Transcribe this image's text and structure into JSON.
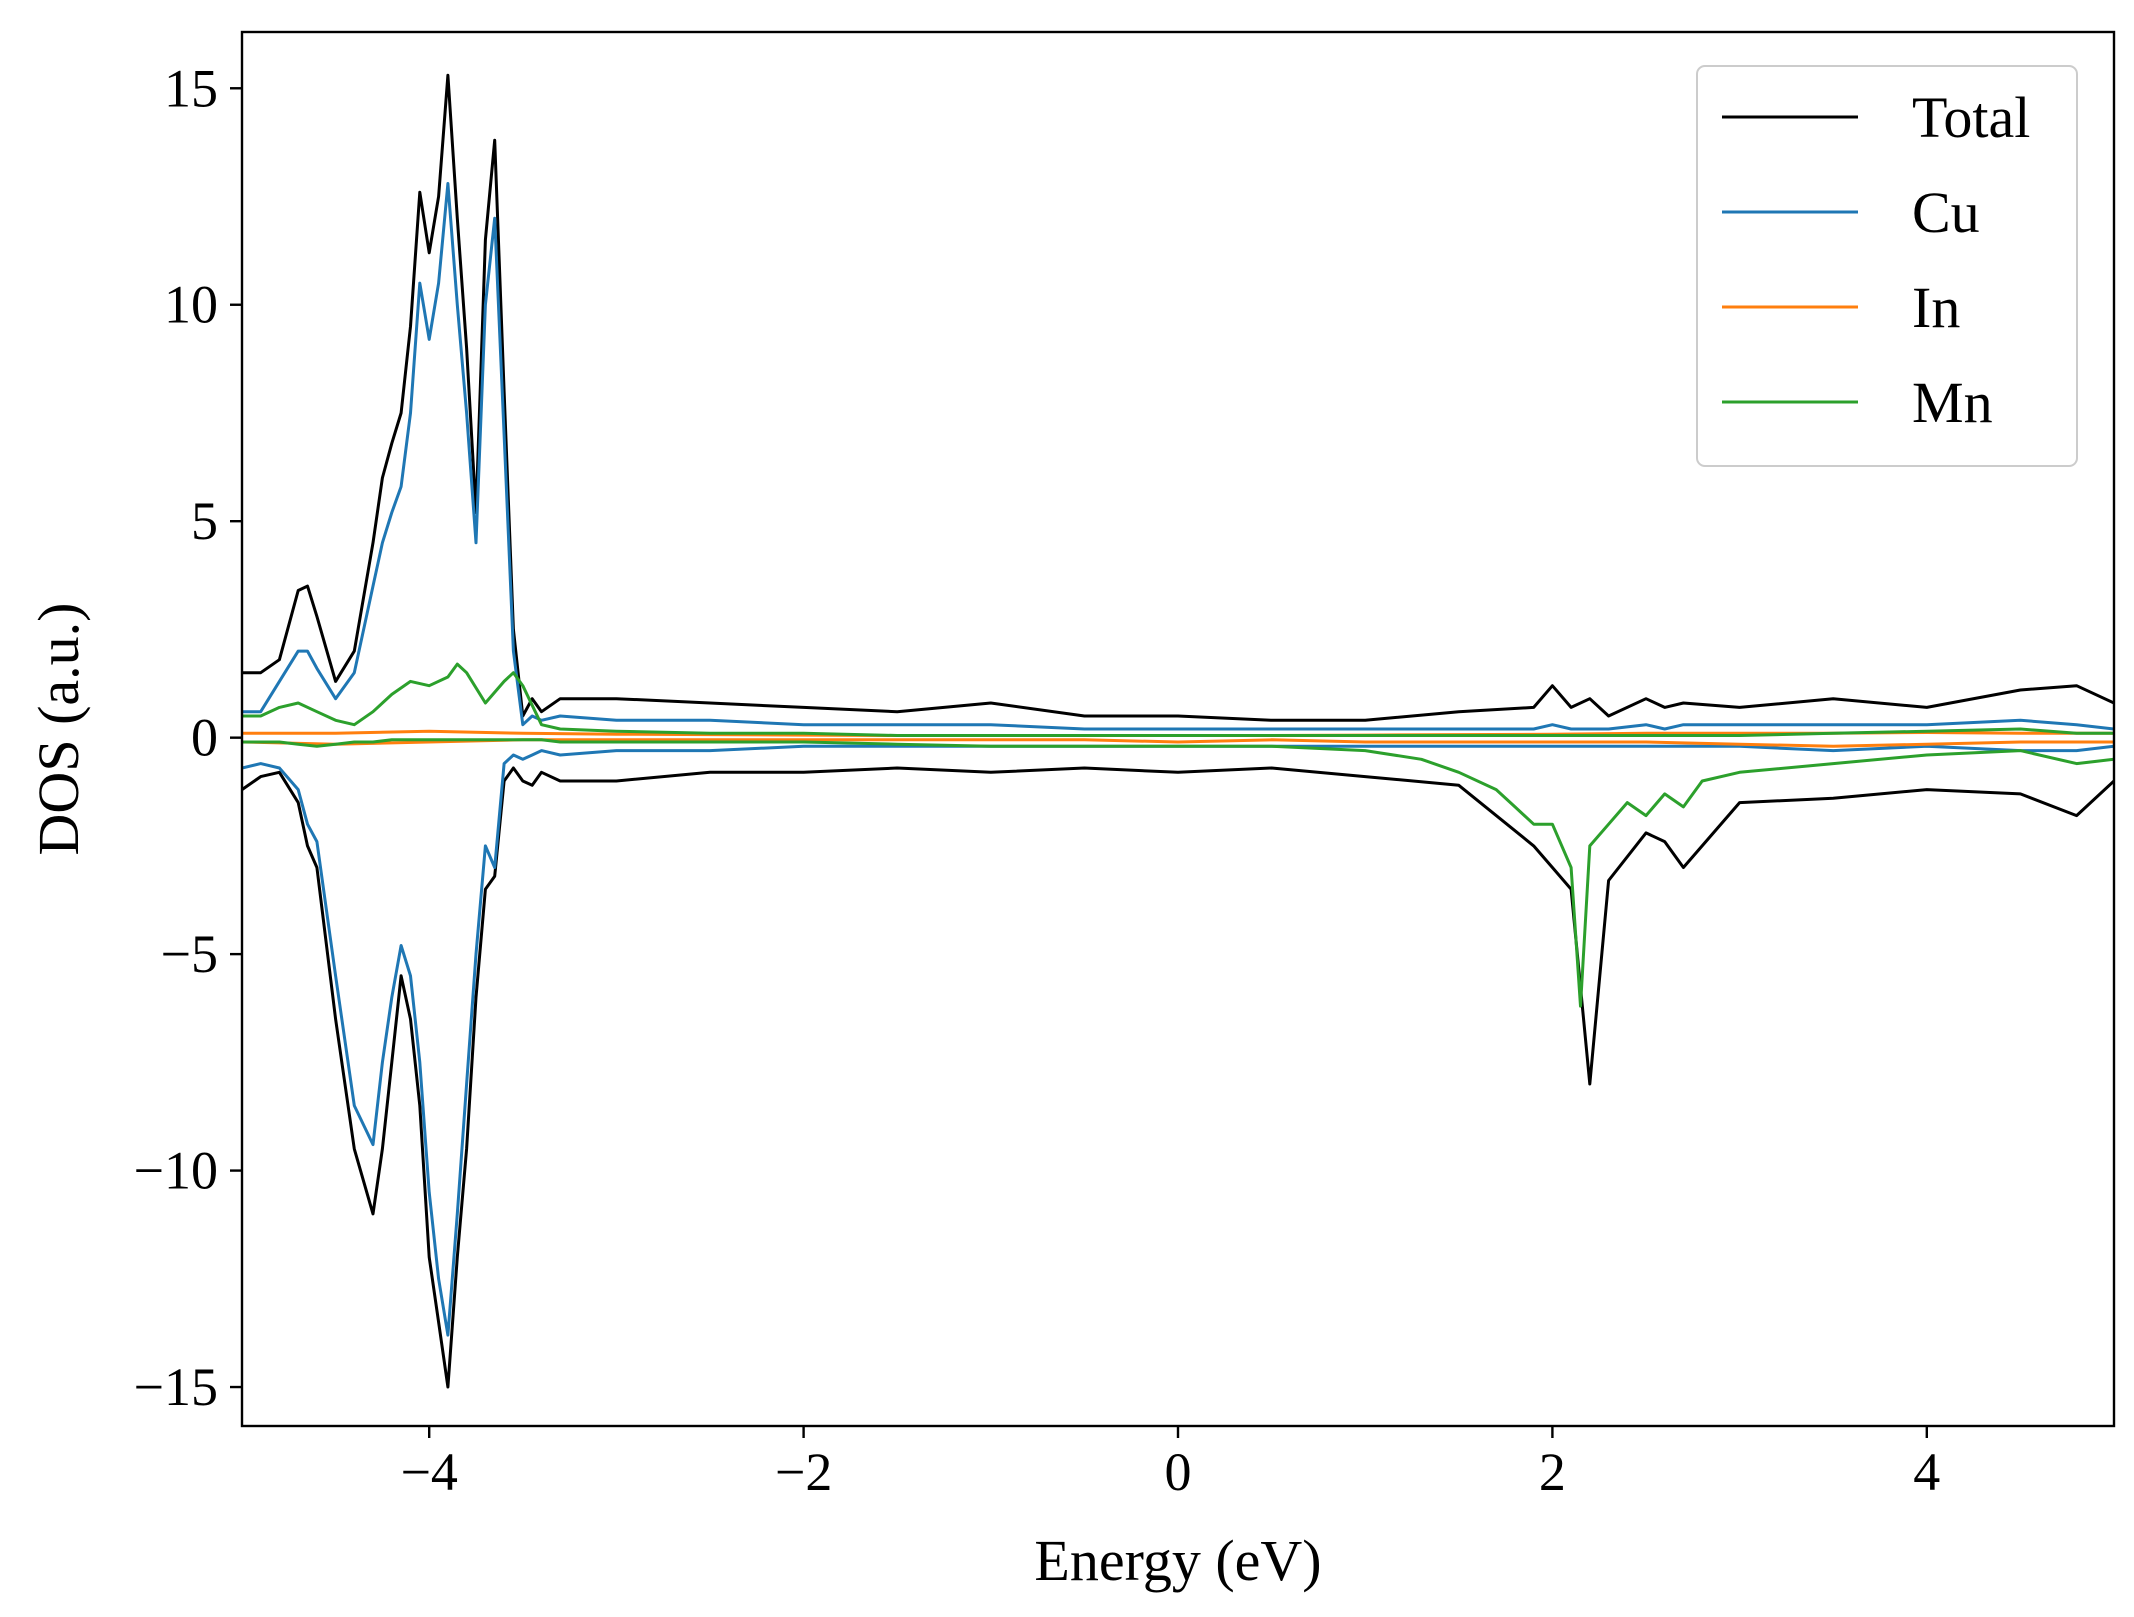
{
  "chart_data": {
    "type": "line",
    "title": "",
    "xlabel": "Energy (eV)",
    "ylabel": "DOS (a.u.)",
    "xlim": [
      -5,
      5
    ],
    "ylim": [
      -15.9,
      16.3
    ],
    "xticks": [
      {
        "value": -4,
        "label": "−4"
      },
      {
        "value": -2,
        "label": "−2"
      },
      {
        "value": 0,
        "label": "0"
      },
      {
        "value": 2,
        "label": "2"
      },
      {
        "value": 4,
        "label": "4"
      }
    ],
    "yticks": [
      {
        "value": 15,
        "label": "15"
      },
      {
        "value": 10,
        "label": "10"
      },
      {
        "value": 5,
        "label": "5"
      },
      {
        "value": 0,
        "label": "0"
      },
      {
        "value": -5,
        "label": "−5"
      },
      {
        "value": -10,
        "label": "−10"
      },
      {
        "value": -15,
        "label": "−15"
      }
    ],
    "grid": false,
    "legend_position": "top-right",
    "series": [
      {
        "name": "Total",
        "color": "#000000",
        "x": [
          -5.0,
          -4.9,
          -4.8,
          -4.7,
          -4.65,
          -4.6,
          -4.5,
          -4.4,
          -4.3,
          -4.25,
          -4.2,
          -4.15,
          -4.1,
          -4.05,
          -4.0,
          -3.95,
          -3.9,
          -3.85,
          -3.8,
          -3.75,
          -3.7,
          -3.65,
          -3.6,
          -3.55,
          -3.5,
          -3.45,
          -3.4,
          -3.3,
          -3.0,
          -2.5,
          -2.0,
          -1.5,
          -1.0,
          -0.5,
          0.0,
          0.5,
          1.0,
          1.5,
          1.9,
          2.0,
          2.1,
          2.2,
          2.3,
          2.5,
          2.6,
          2.7,
          3.0,
          3.5,
          4.0,
          4.5,
          4.8,
          5.0
        ],
        "up": [
          1.5,
          1.5,
          1.8,
          3.4,
          3.5,
          2.8,
          1.3,
          2.0,
          4.5,
          6.0,
          6.8,
          7.5,
          9.5,
          12.6,
          11.2,
          12.5,
          15.3,
          12.0,
          9.0,
          5.2,
          11.5,
          13.8,
          8.0,
          2.5,
          0.5,
          0.9,
          0.6,
          0.9,
          0.9,
          0.8,
          0.7,
          0.6,
          0.8,
          0.5,
          0.5,
          0.4,
          0.4,
          0.6,
          0.7,
          1.2,
          0.7,
          0.9,
          0.5,
          0.9,
          0.7,
          0.8,
          0.7,
          0.9,
          0.7,
          1.1,
          1.2,
          0.8
        ],
        "down": [
          -1.2,
          -0.9,
          -0.8,
          -1.5,
          -2.5,
          -3.0,
          -6.5,
          -9.5,
          -11.0,
          -9.5,
          -7.5,
          -5.5,
          -6.5,
          -8.5,
          -12.0,
          -13.5,
          -15.0,
          -12.0,
          -9.5,
          -6.0,
          -3.5,
          -3.2,
          -1.0,
          -0.7,
          -1.0,
          -1.1,
          -0.8,
          -1.0,
          -1.0,
          -0.8,
          -0.8,
          -0.7,
          -0.8,
          -0.7,
          -0.8,
          -0.7,
          -0.9,
          -1.1,
          -2.5,
          -3.0,
          -3.5,
          -8.0,
          -3.3,
          -2.2,
          -2.4,
          -3.0,
          -1.5,
          -1.4,
          -1.2,
          -1.3,
          -1.8,
          -1.0
        ]
      },
      {
        "name": "Cu",
        "color": "#1f77b4",
        "x": [
          -5.0,
          -4.9,
          -4.8,
          -4.7,
          -4.65,
          -4.6,
          -4.5,
          -4.4,
          -4.3,
          -4.25,
          -4.2,
          -4.15,
          -4.1,
          -4.05,
          -4.0,
          -3.95,
          -3.9,
          -3.85,
          -3.8,
          -3.75,
          -3.7,
          -3.65,
          -3.6,
          -3.55,
          -3.5,
          -3.45,
          -3.4,
          -3.3,
          -3.0,
          -2.5,
          -2.0,
          -1.5,
          -1.0,
          -0.5,
          0.0,
          0.5,
          1.0,
          1.5,
          1.9,
          2.0,
          2.1,
          2.2,
          2.3,
          2.5,
          2.6,
          2.7,
          3.0,
          3.5,
          4.0,
          4.5,
          4.8,
          5.0
        ],
        "up": [
          0.6,
          0.6,
          1.3,
          2.0,
          2.0,
          1.6,
          0.9,
          1.5,
          3.5,
          4.5,
          5.2,
          5.8,
          7.5,
          10.5,
          9.2,
          10.5,
          12.8,
          10.0,
          7.5,
          4.5,
          10.0,
          12.0,
          7.0,
          2.0,
          0.3,
          0.5,
          0.4,
          0.5,
          0.4,
          0.4,
          0.3,
          0.3,
          0.3,
          0.2,
          0.2,
          0.2,
          0.2,
          0.2,
          0.2,
          0.3,
          0.2,
          0.2,
          0.2,
          0.3,
          0.2,
          0.3,
          0.3,
          0.3,
          0.3,
          0.4,
          0.3,
          0.2
        ],
        "down": [
          -0.7,
          -0.6,
          -0.7,
          -1.2,
          -2.0,
          -2.4,
          -5.5,
          -8.5,
          -9.4,
          -7.5,
          -6.0,
          -4.8,
          -5.5,
          -7.5,
          -10.5,
          -12.5,
          -13.8,
          -11.0,
          -8.0,
          -5.0,
          -2.5,
          -3.0,
          -0.6,
          -0.4,
          -0.5,
          -0.4,
          -0.3,
          -0.4,
          -0.3,
          -0.3,
          -0.2,
          -0.2,
          -0.2,
          -0.2,
          -0.2,
          -0.2,
          -0.2,
          -0.2,
          -0.2,
          -0.2,
          -0.2,
          -0.2,
          -0.2,
          -0.2,
          -0.2,
          -0.2,
          -0.2,
          -0.3,
          -0.2,
          -0.3,
          -0.3,
          -0.2
        ]
      },
      {
        "name": "In",
        "color": "#ff7f0e",
        "x": [
          -5.0,
          -4.5,
          -4.0,
          -3.5,
          -3.0,
          -2.5,
          -2.0,
          -1.5,
          -1.0,
          -0.5,
          0.0,
          0.5,
          1.0,
          1.5,
          2.0,
          2.5,
          3.0,
          3.5,
          4.0,
          4.5,
          5.0
        ],
        "up": [
          0.1,
          0.1,
          0.15,
          0.1,
          0.08,
          0.07,
          0.06,
          0.05,
          0.05,
          0.05,
          0.05,
          0.05,
          0.06,
          0.07,
          0.08,
          0.1,
          0.1,
          0.1,
          0.12,
          0.1,
          0.1
        ],
        "down": [
          -0.1,
          -0.15,
          -0.1,
          -0.05,
          -0.05,
          -0.05,
          -0.05,
          -0.05,
          -0.05,
          -0.05,
          -0.1,
          -0.05,
          -0.1,
          -0.1,
          -0.1,
          -0.1,
          -0.15,
          -0.2,
          -0.15,
          -0.1,
          -0.1
        ]
      },
      {
        "name": "Mn",
        "color": "#2ca02c",
        "x": [
          -5.0,
          -4.9,
          -4.8,
          -4.7,
          -4.6,
          -4.5,
          -4.4,
          -4.3,
          -4.2,
          -4.1,
          -4.0,
          -3.9,
          -3.85,
          -3.8,
          -3.7,
          -3.6,
          -3.55,
          -3.5,
          -3.4,
          -3.3,
          -3.0,
          -2.5,
          -2.0,
          -1.5,
          -1.0,
          -0.5,
          0.0,
          0.5,
          1.0,
          1.3,
          1.5,
          1.7,
          1.8,
          1.9,
          2.0,
          2.1,
          2.15,
          2.2,
          2.3,
          2.4,
          2.5,
          2.6,
          2.7,
          2.8,
          3.0,
          3.5,
          4.0,
          4.5,
          4.8,
          5.0
        ],
        "up": [
          0.5,
          0.5,
          0.7,
          0.8,
          0.6,
          0.4,
          0.3,
          0.6,
          1.0,
          1.3,
          1.2,
          1.4,
          1.7,
          1.5,
          0.8,
          1.3,
          1.5,
          1.2,
          0.3,
          0.2,
          0.15,
          0.1,
          0.1,
          0.05,
          0.05,
          0.05,
          0.05,
          0.05,
          0.05,
          0.05,
          0.05,
          0.05,
          0.05,
          0.05,
          0.05,
          0.05,
          0.05,
          0.05,
          0.05,
          0.05,
          0.05,
          0.05,
          0.05,
          0.05,
          0.05,
          0.1,
          0.15,
          0.2,
          0.1,
          0.1
        ],
        "down": [
          -0.1,
          -0.1,
          -0.1,
          -0.15,
          -0.2,
          -0.15,
          -0.1,
          -0.1,
          -0.05,
          -0.05,
          -0.05,
          -0.05,
          -0.05,
          -0.05,
          -0.05,
          -0.05,
          -0.05,
          -0.05,
          -0.05,
          -0.1,
          -0.1,
          -0.1,
          -0.1,
          -0.15,
          -0.2,
          -0.2,
          -0.2,
          -0.2,
          -0.3,
          -0.5,
          -0.8,
          -1.2,
          -1.6,
          -2.0,
          -2.0,
          -3.0,
          -6.2,
          -2.5,
          -2.0,
          -1.5,
          -1.8,
          -1.3,
          -1.6,
          -1.0,
          -0.8,
          -0.6,
          -0.4,
          -0.3,
          -0.6,
          -0.5
        ]
      }
    ]
  }
}
